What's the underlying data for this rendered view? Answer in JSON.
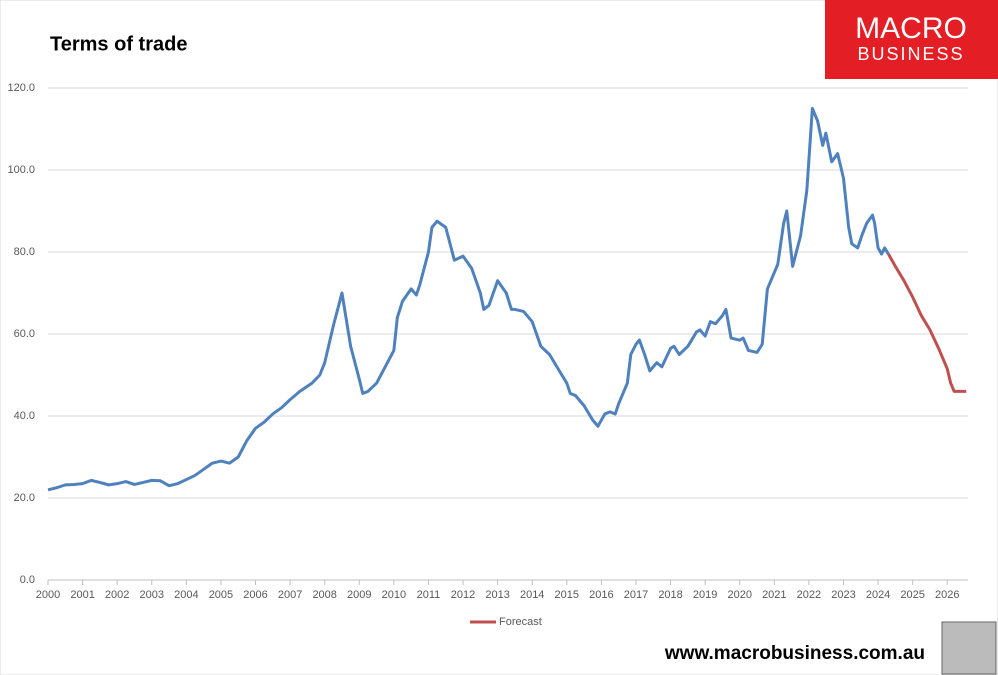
{
  "chart_data": {
    "type": "line",
    "title": "Terms of trade",
    "brand": {
      "top": "MACRO",
      "bottom": "BUSINESS"
    },
    "footer": "www.macrobusiness.com.au",
    "xlim": [
      2000,
      2026.6
    ],
    "xticks": [
      2000,
      2001,
      2002,
      2003,
      2004,
      2005,
      2006,
      2007,
      2008,
      2009,
      2010,
      2011,
      2012,
      2013,
      2014,
      2015,
      2016,
      2017,
      2018,
      2019,
      2020,
      2021,
      2022,
      2023,
      2024,
      2025,
      2026
    ],
    "ylim": [
      0,
      120
    ],
    "yticks": [
      {
        "value": 0,
        "label": "0.0"
      },
      {
        "value": 20,
        "label": "20.0"
      },
      {
        "value": 40,
        "label": "40.0"
      },
      {
        "value": 60,
        "label": "60.0"
      },
      {
        "value": 80,
        "label": "80.0"
      },
      {
        "value": 100,
        "label": "100.0"
      },
      {
        "value": 120,
        "label": "120.0"
      }
    ],
    "grid": true,
    "legend": "bottom",
    "series": [
      {
        "color": "#4f81bd",
        "x": [
          2000,
          2000.25,
          2000.5,
          2000.75,
          2001,
          2001.25,
          2001.5,
          2001.75,
          2002,
          2002.25,
          2002.5,
          2002.75,
          2003,
          2003.25,
          2003.5,
          2003.75,
          2004,
          2004.25,
          2004.5,
          2004.75,
          2005,
          2005.25,
          2005.5,
          2005.75,
          2006,
          2006.25,
          2006.5,
          2006.75,
          2007,
          2007.28,
          2007.63,
          2007.86,
          2008,
          2008.25,
          2008.5,
          2008.75,
          2009,
          2009.1,
          2009.25,
          2009.5,
          2009.75,
          2010,
          2010.1,
          2010.25,
          2010.5,
          2010.65,
          2010.75,
          2011,
          2011.1,
          2011.25,
          2011.5,
          2011.75,
          2012,
          2012.25,
          2012.5,
          2012.6,
          2012.75,
          2013,
          2013.25,
          2013.4,
          2013.5,
          2013.75,
          2014,
          2014.25,
          2014.5,
          2014.75,
          2015,
          2015.1,
          2015.25,
          2015.5,
          2015.75,
          2015.9,
          2016.1,
          2016.25,
          2016.4,
          2016.5,
          2016.75,
          2016.85,
          2017,
          2017.1,
          2017.25,
          2017.4,
          2017.5,
          2017.6,
          2017.75,
          2018,
          2018.1,
          2018.25,
          2018.5,
          2018.75,
          2018.85,
          2019,
          2019.15,
          2019.3,
          2019.5,
          2019.6,
          2019.75,
          2020,
          2020.1,
          2020.25,
          2020.5,
          2020.65,
          2020.8,
          2021.1,
          2021.27,
          2021.36,
          2021.53,
          2021.76,
          2021.94,
          2022.1,
          2022.25,
          2022.4,
          2022.49,
          2022.66,
          2022.83,
          2023,
          2023.15,
          2023.24,
          2023.41,
          2023.53,
          2023.67,
          2023.84,
          2023.9,
          2024,
          2024.1,
          2024.19,
          2024.3
        ],
        "values": [
          22,
          22.5,
          23.2,
          23.3,
          23.5,
          24.3,
          23.8,
          23.2,
          23.5,
          24,
          23.3,
          23.8,
          24.3,
          24.2,
          23,
          23.5,
          24.5,
          25.5,
          27,
          28.5,
          29,
          28.5,
          30,
          34,
          37,
          38.5,
          40.5,
          42,
          44,
          46,
          48,
          50,
          53,
          62,
          70,
          57,
          49,
          45.5,
          46,
          48,
          52,
          56,
          64,
          68,
          71,
          69.5,
          72,
          80,
          86,
          87.5,
          86,
          78,
          79,
          76,
          70,
          66,
          67,
          73,
          70,
          66,
          66,
          65.5,
          63,
          57,
          55,
          51.5,
          48,
          45.5,
          45,
          42.5,
          39,
          37.5,
          40.5,
          41,
          40.5,
          43,
          48,
          55,
          57.5,
          58.5,
          55,
          51,
          52,
          53,
          52,
          56.5,
          57,
          55,
          57,
          60.5,
          61,
          59.5,
          63,
          62.5,
          64.5,
          66,
          59,
          58.5,
          59,
          56,
          55.5,
          57.5,
          71,
          77,
          87,
          90,
          76.5,
          84,
          95,
          115,
          112,
          106,
          109,
          102,
          104,
          98,
          86,
          82,
          81,
          84,
          87,
          89,
          87,
          81,
          79.5,
          81,
          79.5
        ]
      },
      {
        "name": "Forecast",
        "color": "#c0504d",
        "x": [
          2024.3,
          2024.5,
          2024.75,
          2025,
          2025.25,
          2025.5,
          2025.75,
          2026,
          2026.1,
          2026.2,
          2026.3,
          2026.55
        ],
        "values": [
          79.5,
          76.5,
          73,
          69,
          64.5,
          61,
          56.5,
          51.5,
          48,
          46,
          46,
          46
        ]
      }
    ]
  }
}
